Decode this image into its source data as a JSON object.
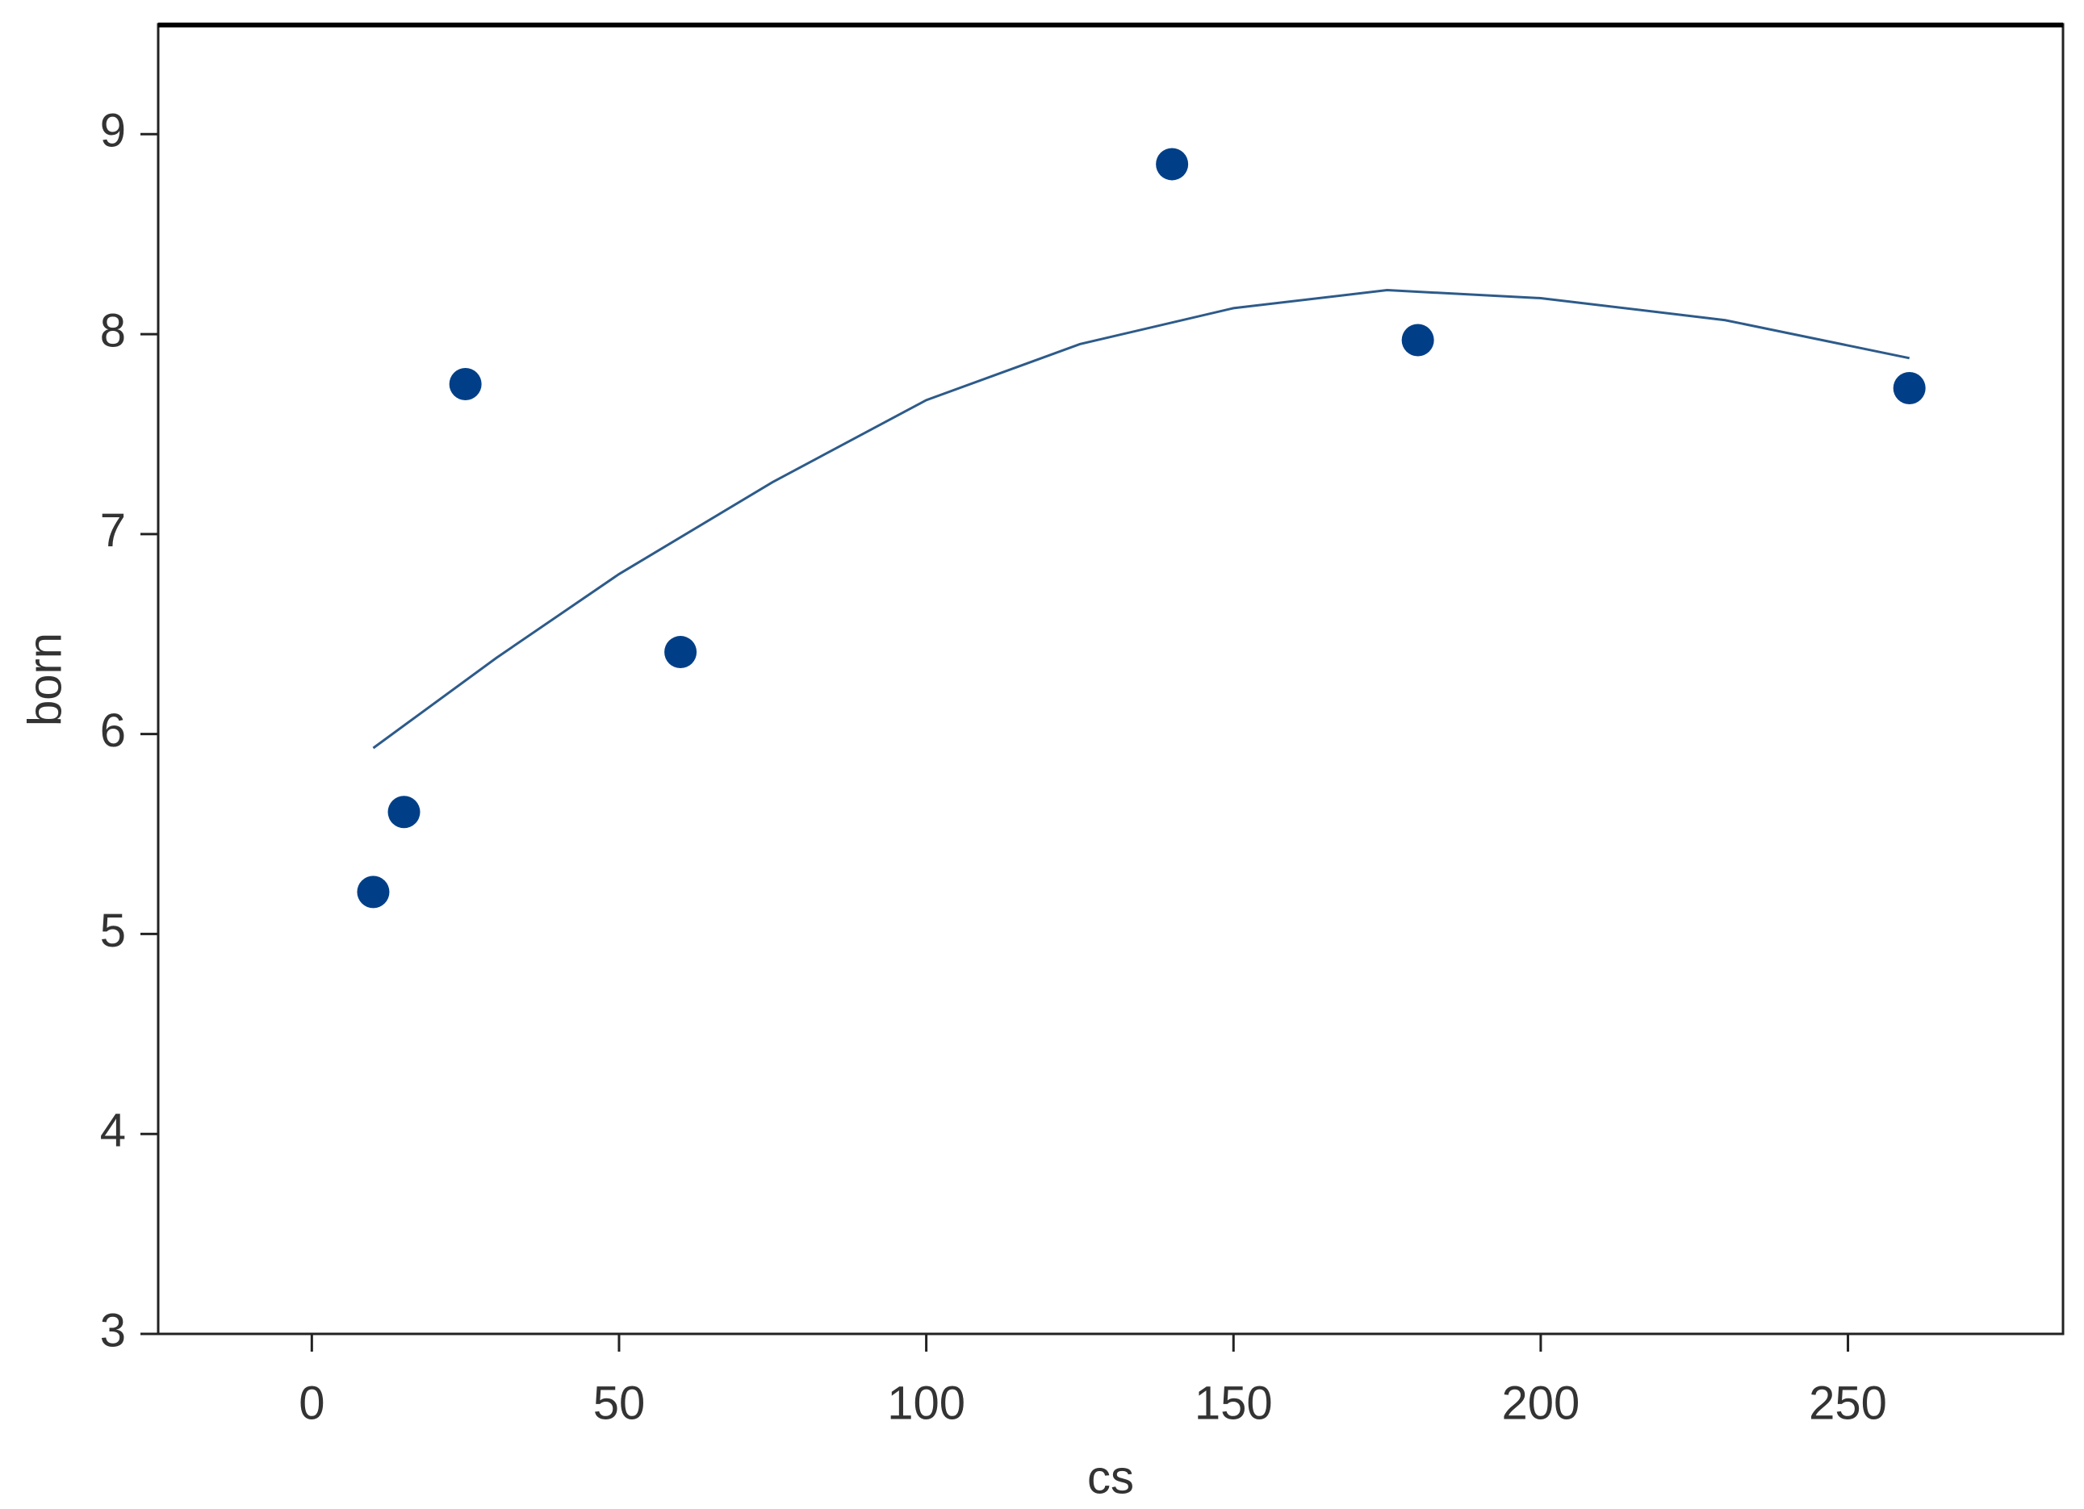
{
  "chart_data": {
    "type": "scatter",
    "x_label": "cs",
    "y_label": "born",
    "x": [
      10,
      15,
      25,
      60,
      140,
      180,
      260
    ],
    "values": [
      5.21,
      5.61,
      7.75,
      6.41,
      8.85,
      7.97,
      7.73
    ],
    "color": "#003f87",
    "fit": {
      "x": [
        10,
        30,
        50,
        75,
        100,
        125,
        150,
        175,
        200,
        230,
        260
      ],
      "values": [
        5.93,
        6.38,
        6.8,
        7.26,
        7.67,
        7.95,
        8.13,
        8.22,
        8.18,
        8.07,
        7.88
      ],
      "color": "#2d5b8a"
    },
    "xlim": [
      -25,
      285
    ],
    "ylim": [
      3,
      9.55
    ],
    "xticks": [
      0,
      50,
      100,
      150,
      200,
      250
    ],
    "yticks": [
      3,
      4,
      5,
      6,
      7,
      8,
      9
    ]
  }
}
